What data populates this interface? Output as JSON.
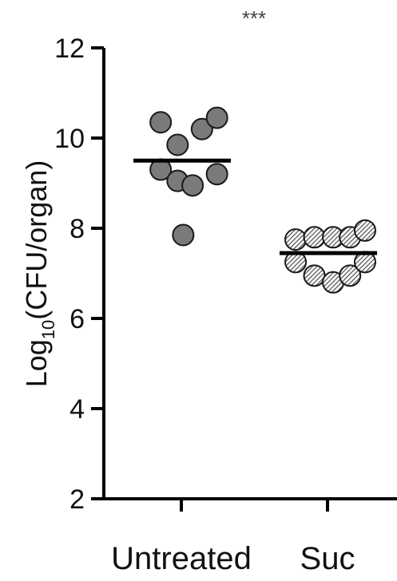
{
  "chart_data": {
    "type": "scatter",
    "ylabel": "Log10(CFU/organ)",
    "ylabel_parts": {
      "main": "Log",
      "sub": "10",
      "rest": "(CFU/organ)"
    },
    "ylim": [
      2,
      12
    ],
    "yticks": [
      "2",
      "4",
      "6",
      "8",
      "10",
      "12"
    ],
    "categories": [
      "Untreated",
      "Suc"
    ],
    "series": [
      {
        "category": "Untreated",
        "points": [
          {
            "x": -0.55,
            "y": 10.35
          },
          {
            "x": 0.55,
            "y": 10.2
          },
          {
            "x": 0.95,
            "y": 10.45
          },
          {
            "x": -0.1,
            "y": 9.85
          },
          {
            "x": -0.55,
            "y": 9.3
          },
          {
            "x": -0.1,
            "y": 9.05
          },
          {
            "x": 0.3,
            "y": 8.95
          },
          {
            "x": 0.95,
            "y": 9.2
          },
          {
            "x": 0.05,
            "y": 7.85
          }
        ],
        "mean": 9.5
      },
      {
        "category": "Suc",
        "points": [
          {
            "x": -0.85,
            "y": 7.75
          },
          {
            "x": -0.35,
            "y": 7.8
          },
          {
            "x": 0.15,
            "y": 7.8
          },
          {
            "x": 0.6,
            "y": 7.8
          },
          {
            "x": 1.0,
            "y": 7.95
          },
          {
            "x": -0.85,
            "y": 7.25
          },
          {
            "x": -0.35,
            "y": 6.95
          },
          {
            "x": 0.15,
            "y": 6.8
          },
          {
            "x": 0.6,
            "y": 6.95
          },
          {
            "x": 1.0,
            "y": 7.25
          }
        ],
        "mean": 7.45
      }
    ],
    "significance": {
      "label": "***",
      "y": 12
    },
    "colors": {
      "marker_fill": "#7a7a7a",
      "marker_stroke": "#1a1a1a",
      "axis": "#000000"
    }
  }
}
